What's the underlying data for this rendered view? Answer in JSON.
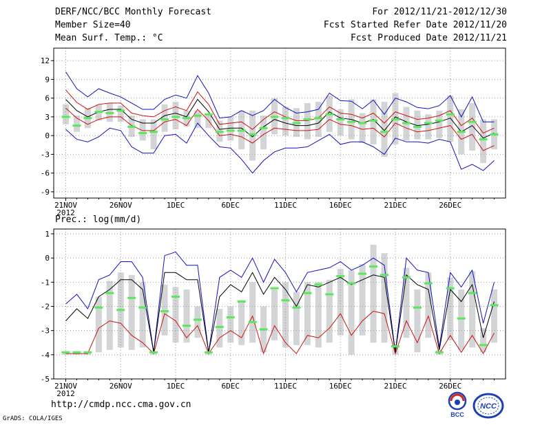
{
  "header": {
    "title": "DERF/NCC/BCC Monthly Forecast",
    "member": "Member Size=40",
    "variable": "Mean Surf. Temp.: °C",
    "period": "For 2012/11/21-2012/12/30",
    "started": "Fcst Started Refer Date 2012/11/20",
    "produced": "Fcst Produced Date 2012/11/21"
  },
  "footer": {
    "url": "http://cmdp.ncc.cma.gov.cn",
    "credit": "GrADS: COLA/IGES",
    "logo1_text": "BCC",
    "logo2_text": "NCC"
  },
  "colors": {
    "box": "#d3d4d6",
    "median": "#5ae85a",
    "mean": "#000000",
    "inner": "#cc1111",
    "outer": "#1010c0",
    "grid": "#999999"
  },
  "chart_data": [
    {
      "type": "line",
      "title": "Mean Surf. Temp.: °C",
      "ylim": [
        -10,
        14
      ],
      "yticks": [
        -9,
        -6,
        -3,
        0,
        3,
        6,
        9,
        12
      ],
      "xlabels": [
        {
          "day": 0,
          "label": "21NOV",
          "sub": "2012"
        },
        {
          "day": 5,
          "label": "26NOV"
        },
        {
          "day": 10,
          "label": "1DEC"
        },
        {
          "day": 15,
          "label": "6DEC"
        },
        {
          "day": 20,
          "label": "11DEC"
        },
        {
          "day": 25,
          "label": "16DEC"
        },
        {
          "day": 30,
          "label": "21DEC"
        },
        {
          "day": 35,
          "label": "26DEC"
        }
      ],
      "series": [
        {
          "name": "outer_max",
          "values": [
            10.2,
            7.5,
            6.2,
            7.5,
            6.8,
            6.2,
            5.2,
            4.2,
            4.2,
            5.8,
            6.5,
            6.0,
            9.6,
            6.8,
            2.8,
            3.0,
            4.0,
            3.2,
            4.0,
            5.8,
            4.5,
            3.6,
            3.8,
            4.2,
            6.8,
            5.6,
            5.5,
            4.3,
            5.7,
            3.4,
            6.0,
            5.4,
            4.5,
            4.3,
            4.8,
            6.4,
            3.0,
            6.2,
            2.2,
            2.2
          ]
        },
        {
          "name": "inner_max",
          "values": [
            7.3,
            5.3,
            4.2,
            5.0,
            5.2,
            5.2,
            3.6,
            3.2,
            3.0,
            4.0,
            4.6,
            4.0,
            7.0,
            5.0,
            1.8,
            2.0,
            2.2,
            1.0,
            2.6,
            3.8,
            3.0,
            2.4,
            2.4,
            2.8,
            4.6,
            3.6,
            3.4,
            2.8,
            3.6,
            2.0,
            3.8,
            3.2,
            2.6,
            2.8,
            3.2,
            4.0,
            1.6,
            2.8,
            0.4,
            1.2
          ]
        },
        {
          "name": "mean",
          "values": [
            5.8,
            4.0,
            3.0,
            3.8,
            4.2,
            4.2,
            2.6,
            2.0,
            2.0,
            3.2,
            3.6,
            3.0,
            5.8,
            3.8,
            1.0,
            1.2,
            1.2,
            -0.2,
            1.4,
            2.6,
            2.0,
            1.6,
            1.6,
            2.0,
            3.8,
            2.8,
            2.6,
            2.0,
            2.6,
            0.8,
            3.0,
            2.2,
            1.6,
            1.8,
            2.2,
            2.8,
            0.6,
            1.6,
            -0.4,
            0.4
          ]
        },
        {
          "name": "inner_min",
          "values": [
            4.4,
            2.8,
            1.8,
            2.6,
            3.0,
            3.0,
            1.6,
            0.8,
            0.8,
            2.2,
            2.6,
            1.6,
            4.2,
            2.4,
            0.0,
            0.2,
            -0.2,
            -1.2,
            0.2,
            1.2,
            1.0,
            0.8,
            0.8,
            1.0,
            2.6,
            1.8,
            1.6,
            1.0,
            1.2,
            -0.2,
            2.0,
            1.2,
            0.6,
            0.8,
            1.2,
            1.6,
            -0.6,
            0.2,
            -2.4,
            -1.6
          ]
        },
        {
          "name": "outer_min",
          "values": [
            1.0,
            -0.6,
            -1.0,
            -0.2,
            1.2,
            0.8,
            -1.8,
            -2.8,
            -2.8,
            0.0,
            0.2,
            -1.2,
            2.0,
            0.0,
            -1.8,
            -2.0,
            -3.8,
            -6.0,
            -4.0,
            -2.6,
            -2.0,
            -2.0,
            -1.8,
            -0.8,
            0.2,
            -1.4,
            -1.0,
            -1.0,
            -1.8,
            -3.0,
            -0.4,
            -1.0,
            -1.0,
            -1.2,
            -0.6,
            -1.0,
            -5.4,
            -4.6,
            -5.6,
            -4.0
          ]
        },
        {
          "name": "box_top",
          "values": [
            5.0,
            3.2,
            4.4,
            5.0,
            5.2,
            4.8,
            3.2,
            2.6,
            2.6,
            5.0,
            5.4,
            4.0,
            4.0,
            3.4,
            2.4,
            3.0,
            4.0,
            4.0,
            3.2,
            6.0,
            4.6,
            4.4,
            5.2,
            5.4,
            6.4,
            4.2,
            5.8,
            3.6,
            5.8,
            5.4,
            6.8,
            4.6,
            4.0,
            3.4,
            4.0,
            6.4,
            4.2,
            5.2,
            2.6,
            2.6
          ]
        },
        {
          "name": "box_bottom",
          "values": [
            1.8,
            0.6,
            1.2,
            2.4,
            2.2,
            2.2,
            -0.2,
            -0.8,
            -2.2,
            0.6,
            1.0,
            1.4,
            1.2,
            1.2,
            -1.0,
            -0.8,
            -2.2,
            -4.0,
            -2.2,
            0.2,
            0.0,
            -0.2,
            -0.6,
            -0.2,
            0.6,
            0.0,
            -0.6,
            -1.2,
            -1.4,
            -3.4,
            -1.4,
            -0.8,
            -0.6,
            -0.6,
            -0.4,
            -1.0,
            -3.0,
            -2.4,
            -4.4,
            -2.2
          ]
        },
        {
          "name": "median",
          "values": [
            3.0,
            1.6,
            2.8,
            3.8,
            3.6,
            4.0,
            1.4,
            0.4,
            0.6,
            2.6,
            3.0,
            2.8,
            3.2,
            3.4,
            0.6,
            0.8,
            0.8,
            0.2,
            1.2,
            3.0,
            2.8,
            2.0,
            2.6,
            2.8,
            3.4,
            2.6,
            2.2,
            2.0,
            2.4,
            0.6,
            2.6,
            2.0,
            1.4,
            2.0,
            2.4,
            3.4,
            0.6,
            2.2,
            -0.6,
            0.2
          ]
        }
      ]
    },
    {
      "type": "line",
      "title": "Prec.: log(mm/d)",
      "ylim": [
        -5,
        1.2
      ],
      "yticks": [
        -5,
        -4,
        -3,
        -2,
        -1,
        0,
        1
      ],
      "xlabels": [
        {
          "day": 0,
          "label": "21NOV",
          "sub": "2012"
        },
        {
          "day": 5,
          "label": "26NOV"
        },
        {
          "day": 10,
          "label": "1DEC"
        },
        {
          "day": 15,
          "label": "6DEC"
        },
        {
          "day": 20,
          "label": "11DEC"
        },
        {
          "day": 25,
          "label": "16DEC"
        },
        {
          "day": 30,
          "label": "21DEC"
        },
        {
          "day": 35,
          "label": "26DEC"
        }
      ],
      "series": [
        {
          "name": "outer_max",
          "values": [
            -1.9,
            -1.5,
            -2.1,
            -0.9,
            -0.7,
            -0.15,
            -0.15,
            -0.8,
            -3.9,
            0.1,
            0.25,
            -0.3,
            -0.3,
            -3.9,
            -0.8,
            -0.5,
            -0.8,
            0.0,
            -1.0,
            -0.05,
            -0.6,
            -1.4,
            -0.6,
            -0.5,
            -0.4,
            -0.15,
            -0.5,
            -0.3,
            0.0,
            -0.3,
            -3.9,
            0.0,
            -0.5,
            -0.6,
            -3.7,
            -0.6,
            -1.2,
            -0.5,
            -2.7,
            -1.0
          ]
        },
        {
          "name": "mean",
          "values": [
            -2.6,
            -2.1,
            -2.5,
            -1.6,
            -1.3,
            -0.9,
            -0.9,
            -1.3,
            -3.9,
            -0.6,
            -0.6,
            -0.9,
            -0.9,
            -3.9,
            -1.6,
            -1.1,
            -1.4,
            -0.6,
            -1.5,
            -0.8,
            -1.3,
            -2.0,
            -1.1,
            -1.2,
            -1.0,
            -0.8,
            -1.1,
            -0.9,
            -0.7,
            -0.8,
            -3.9,
            -0.7,
            -1.1,
            -1.3,
            -3.8,
            -1.3,
            -1.8,
            -1.1,
            -3.3,
            -1.8
          ]
        },
        {
          "name": "inner_min",
          "values": [
            -3.95,
            -3.95,
            -3.95,
            -2.9,
            -2.6,
            -2.7,
            -3.2,
            -3.5,
            -3.95,
            -2.3,
            -2.6,
            -3.3,
            -2.8,
            -3.95,
            -3.3,
            -3.0,
            -3.3,
            -2.4,
            -3.95,
            -2.8,
            -3.5,
            -3.95,
            -3.2,
            -3.3,
            -2.9,
            -2.3,
            -3.2,
            -2.6,
            -2.2,
            -2.3,
            -3.95,
            -2.6,
            -3.5,
            -2.4,
            -3.95,
            -3.2,
            -3.9,
            -3.2,
            -3.95,
            -3.1
          ]
        },
        {
          "name": "box_top",
          "values": [
            -3.9,
            -3.9,
            -3.9,
            -1.6,
            -0.95,
            -0.6,
            -0.7,
            -1.0,
            -3.9,
            -1.1,
            -1.2,
            -1.3,
            -2.0,
            -3.9,
            -2.1,
            -2.0,
            -1.8,
            -1.0,
            -2.0,
            -1.3,
            -1.0,
            -1.4,
            -1.0,
            -1.0,
            -0.9,
            -0.45,
            -0.5,
            -0.25,
            0.55,
            0.2,
            -3.6,
            -0.4,
            -1.3,
            -0.6,
            -3.8,
            -0.8,
            -1.3,
            -0.55,
            -2.9,
            -1.3
          ]
        },
        {
          "name": "box_bottom",
          "values": [
            -4.0,
            -4.0,
            -4.0,
            -3.9,
            -3.8,
            -3.7,
            -3.8,
            -3.7,
            -4.0,
            -3.2,
            -3.5,
            -3.5,
            -3.3,
            -4.0,
            -3.7,
            -3.5,
            -3.6,
            -3.5,
            -3.9,
            -3.4,
            -3.7,
            -3.6,
            -3.6,
            -3.7,
            -3.5,
            -3.2,
            -4.0,
            -3.2,
            -3.5,
            -3.5,
            -4.0,
            -3.3,
            -3.9,
            -3.3,
            -4.0,
            -3.4,
            -3.8,
            -3.7,
            -3.9,
            -3.5
          ]
        },
        {
          "name": "median",
          "values": [
            -3.9,
            -3.9,
            -3.9,
            -2.05,
            -1.45,
            -2.15,
            -1.65,
            -2.05,
            -3.9,
            -2.2,
            -1.6,
            -2.8,
            -2.55,
            -3.9,
            -2.85,
            -2.45,
            -1.8,
            -2.65,
            -2.95,
            -1.25,
            -1.75,
            -2.05,
            -1.45,
            -1.1,
            -1.5,
            -0.75,
            -1.05,
            -0.65,
            -0.35,
            -0.7,
            -3.65,
            -0.8,
            -2.05,
            -1.05,
            -3.9,
            -1.25,
            -2.5,
            -1.45,
            -3.6,
            -1.95
          ]
        }
      ]
    }
  ]
}
